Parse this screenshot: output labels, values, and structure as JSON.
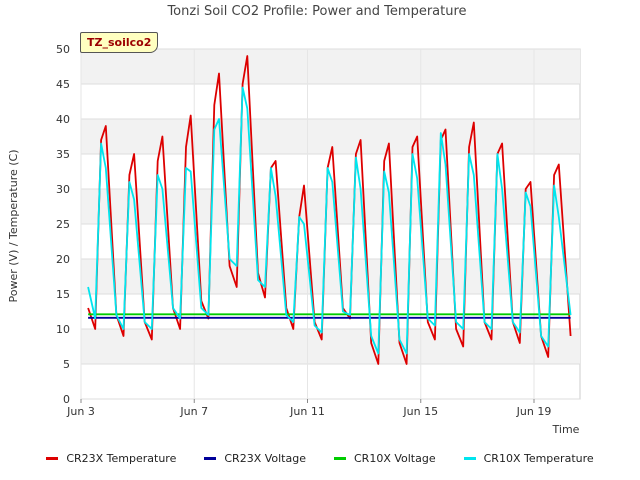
{
  "chart_data": {
    "type": "line",
    "title": "Tonzi Soil CO2 Profile: Power and Temperature",
    "xlabel": "Time",
    "ylabel": "Power (V) / Temperature (C)",
    "ylim": [
      0,
      50
    ],
    "yticks": [
      0,
      5,
      10,
      15,
      20,
      25,
      30,
      35,
      40,
      45,
      50
    ],
    "xlim": [
      "2023-06-03",
      "2023-06-21"
    ],
    "xticks": [
      {
        "date": "2023-06-03",
        "label": "Jun 3"
      },
      {
        "date": "2023-06-07",
        "label": "Jun 7"
      },
      {
        "date": "2023-06-11",
        "label": "Jun 11"
      },
      {
        "date": "2023-06-15",
        "label": "Jun 15"
      },
      {
        "date": "2023-06-19",
        "label": "Jun 19"
      }
    ],
    "grid": true,
    "legend_position": "bottom",
    "site_label": "TZ_soilco2",
    "series": [
      {
        "name": "CR23X Temperature",
        "color": "#dd0000",
        "points": [
          [
            "2023-06-03 06:00",
            13.0
          ],
          [
            "2023-06-03 12:00",
            10.0
          ],
          [
            "2023-06-03 17:00",
            37.0
          ],
          [
            "2023-06-03 21:00",
            39.0
          ],
          [
            "2023-06-04 06:00",
            12.0
          ],
          [
            "2023-06-04 12:00",
            9.0
          ],
          [
            "2023-06-04 17:00",
            32.0
          ],
          [
            "2023-06-04 21:00",
            35.0
          ],
          [
            "2023-06-05 06:00",
            11.0
          ],
          [
            "2023-06-05 12:00",
            8.5
          ],
          [
            "2023-06-05 17:00",
            34.0
          ],
          [
            "2023-06-05 21:00",
            37.5
          ],
          [
            "2023-06-06 06:00",
            13.0
          ],
          [
            "2023-06-06 12:00",
            10.0
          ],
          [
            "2023-06-06 17:00",
            36.0
          ],
          [
            "2023-06-06 21:00",
            40.5
          ],
          [
            "2023-06-07 06:00",
            14.0
          ],
          [
            "2023-06-07 12:00",
            11.5
          ],
          [
            "2023-06-07 17:00",
            42.0
          ],
          [
            "2023-06-07 21:00",
            46.5
          ],
          [
            "2023-06-08 06:00",
            19.0
          ],
          [
            "2023-06-08 12:00",
            16.0
          ],
          [
            "2023-06-08 17:00",
            45.0
          ],
          [
            "2023-06-08 21:00",
            49.0
          ],
          [
            "2023-06-09 06:00",
            18.0
          ],
          [
            "2023-06-09 12:00",
            14.5
          ],
          [
            "2023-06-09 17:00",
            33.0
          ],
          [
            "2023-06-09 21:00",
            34.0
          ],
          [
            "2023-06-10 06:00",
            13.0
          ],
          [
            "2023-06-10 12:00",
            10.0
          ],
          [
            "2023-06-10 17:00",
            26.0
          ],
          [
            "2023-06-10 21:00",
            30.5
          ],
          [
            "2023-06-11 06:00",
            11.0
          ],
          [
            "2023-06-11 12:00",
            8.5
          ],
          [
            "2023-06-11 17:00",
            33.0
          ],
          [
            "2023-06-11 21:00",
            36.0
          ],
          [
            "2023-06-12 06:00",
            13.0
          ],
          [
            "2023-06-12 12:00",
            11.5
          ],
          [
            "2023-06-12 17:00",
            35.0
          ],
          [
            "2023-06-12 21:00",
            37.0
          ],
          [
            "2023-06-13 06:00",
            8.0
          ],
          [
            "2023-06-13 12:00",
            5.0
          ],
          [
            "2023-06-13 17:00",
            34.0
          ],
          [
            "2023-06-13 21:00",
            36.5
          ],
          [
            "2023-06-14 06:00",
            8.0
          ],
          [
            "2023-06-14 12:00",
            5.0
          ],
          [
            "2023-06-14 17:00",
            36.0
          ],
          [
            "2023-06-14 21:00",
            37.5
          ],
          [
            "2023-06-15 06:00",
            11.0
          ],
          [
            "2023-06-15 12:00",
            8.5
          ],
          [
            "2023-06-15 17:00",
            37.0
          ],
          [
            "2023-06-15 21:00",
            38.5
          ],
          [
            "2023-06-16 06:00",
            10.0
          ],
          [
            "2023-06-16 12:00",
            7.5
          ],
          [
            "2023-06-16 17:00",
            36.0
          ],
          [
            "2023-06-16 21:00",
            39.5
          ],
          [
            "2023-06-17 06:00",
            11.0
          ],
          [
            "2023-06-17 12:00",
            8.5
          ],
          [
            "2023-06-17 17:00",
            35.0
          ],
          [
            "2023-06-17 21:00",
            36.5
          ],
          [
            "2023-06-18 06:00",
            11.0
          ],
          [
            "2023-06-18 12:00",
            8.0
          ],
          [
            "2023-06-18 17:00",
            30.0
          ],
          [
            "2023-06-18 21:00",
            31.0
          ],
          [
            "2023-06-19 06:00",
            9.0
          ],
          [
            "2023-06-19 12:00",
            6.0
          ],
          [
            "2023-06-19 17:00",
            32.0
          ],
          [
            "2023-06-19 21:00",
            33.5
          ],
          [
            "2023-06-20 07:00",
            9.0
          ]
        ]
      },
      {
        "name": "CR23X Voltage",
        "color": "#000099",
        "points": [
          [
            "2023-06-03 06:00",
            11.6
          ],
          [
            "2023-06-07 00:00",
            11.6
          ],
          [
            "2023-06-11 00:00",
            11.6
          ],
          [
            "2023-06-15 00:00",
            11.6
          ],
          [
            "2023-06-19 00:00",
            11.6
          ],
          [
            "2023-06-20 07:00",
            11.6
          ]
        ]
      },
      {
        "name": "CR10X Voltage",
        "color": "#00cc00",
        "points": [
          [
            "2023-06-03 06:00",
            12.1
          ],
          [
            "2023-06-07 00:00",
            12.1
          ],
          [
            "2023-06-11 00:00",
            12.1
          ],
          [
            "2023-06-15 00:00",
            12.1
          ],
          [
            "2023-06-19 00:00",
            12.1
          ],
          [
            "2023-06-20 07:00",
            12.1
          ]
        ]
      },
      {
        "name": "CR10X Temperature",
        "color": "#00e5ee",
        "points": [
          [
            "2023-06-03 06:00",
            16.0
          ],
          [
            "2023-06-03 12:00",
            11.5
          ],
          [
            "2023-06-03 17:00",
            36.5
          ],
          [
            "2023-06-03 21:00",
            33.0
          ],
          [
            "2023-06-04 06:00",
            12.0
          ],
          [
            "2023-06-04 12:00",
            10.0
          ],
          [
            "2023-06-04 17:00",
            31.0
          ],
          [
            "2023-06-04 21:00",
            28.5
          ],
          [
            "2023-06-05 06:00",
            11.0
          ],
          [
            "2023-06-05 12:00",
            10.0
          ],
          [
            "2023-06-05 17:00",
            32.0
          ],
          [
            "2023-06-05 21:00",
            30.0
          ],
          [
            "2023-06-06 06:00",
            13.0
          ],
          [
            "2023-06-06 12:00",
            11.5
          ],
          [
            "2023-06-06 17:00",
            33.0
          ],
          [
            "2023-06-06 21:00",
            32.5
          ],
          [
            "2023-06-07 06:00",
            13.0
          ],
          [
            "2023-06-07 12:00",
            12.0
          ],
          [
            "2023-06-07 17:00",
            38.5
          ],
          [
            "2023-06-07 21:00",
            40.0
          ],
          [
            "2023-06-08 06:00",
            20.0
          ],
          [
            "2023-06-08 12:00",
            19.0
          ],
          [
            "2023-06-08 17:00",
            44.5
          ],
          [
            "2023-06-08 21:00",
            41.5
          ],
          [
            "2023-06-09 06:00",
            17.0
          ],
          [
            "2023-06-09 12:00",
            16.0
          ],
          [
            "2023-06-09 17:00",
            33.0
          ],
          [
            "2023-06-09 21:00",
            29.0
          ],
          [
            "2023-06-10 06:00",
            12.0
          ],
          [
            "2023-06-10 12:00",
            11.0
          ],
          [
            "2023-06-10 17:00",
            26.0
          ],
          [
            "2023-06-10 21:00",
            25.0
          ],
          [
            "2023-06-11 06:00",
            10.5
          ],
          [
            "2023-06-11 12:00",
            9.5
          ],
          [
            "2023-06-11 17:00",
            33.0
          ],
          [
            "2023-06-11 21:00",
            31.0
          ],
          [
            "2023-06-12 06:00",
            12.5
          ],
          [
            "2023-06-12 12:00",
            12.0
          ],
          [
            "2023-06-12 17:00",
            34.5
          ],
          [
            "2023-06-12 21:00",
            30.0
          ],
          [
            "2023-06-13 06:00",
            9.0
          ],
          [
            "2023-06-13 12:00",
            6.5
          ],
          [
            "2023-06-13 17:00",
            32.5
          ],
          [
            "2023-06-13 21:00",
            29.5
          ],
          [
            "2023-06-14 06:00",
            8.5
          ],
          [
            "2023-06-14 12:00",
            6.5
          ],
          [
            "2023-06-14 17:00",
            35.0
          ],
          [
            "2023-06-14 21:00",
            31.5
          ],
          [
            "2023-06-15 06:00",
            11.5
          ],
          [
            "2023-06-15 12:00",
            10.5
          ],
          [
            "2023-06-15 17:00",
            38.0
          ],
          [
            "2023-06-15 21:00",
            33.5
          ],
          [
            "2023-06-16 06:00",
            11.0
          ],
          [
            "2023-06-16 12:00",
            10.0
          ],
          [
            "2023-06-16 17:00",
            35.0
          ],
          [
            "2023-06-16 21:00",
            32.0
          ],
          [
            "2023-06-17 06:00",
            11.0
          ],
          [
            "2023-06-17 12:00",
            10.0
          ],
          [
            "2023-06-17 17:00",
            35.0
          ],
          [
            "2023-06-17 21:00",
            30.0
          ],
          [
            "2023-06-18 06:00",
            11.0
          ],
          [
            "2023-06-18 12:00",
            9.5
          ],
          [
            "2023-06-18 17:00",
            29.5
          ],
          [
            "2023-06-18 21:00",
            27.5
          ],
          [
            "2023-06-19 06:00",
            9.0
          ],
          [
            "2023-06-19 12:00",
            7.5
          ],
          [
            "2023-06-19 17:00",
            30.5
          ],
          [
            "2023-06-19 21:00",
            26.0
          ],
          [
            "2023-06-20 07:00",
            12.0
          ]
        ]
      }
    ]
  }
}
